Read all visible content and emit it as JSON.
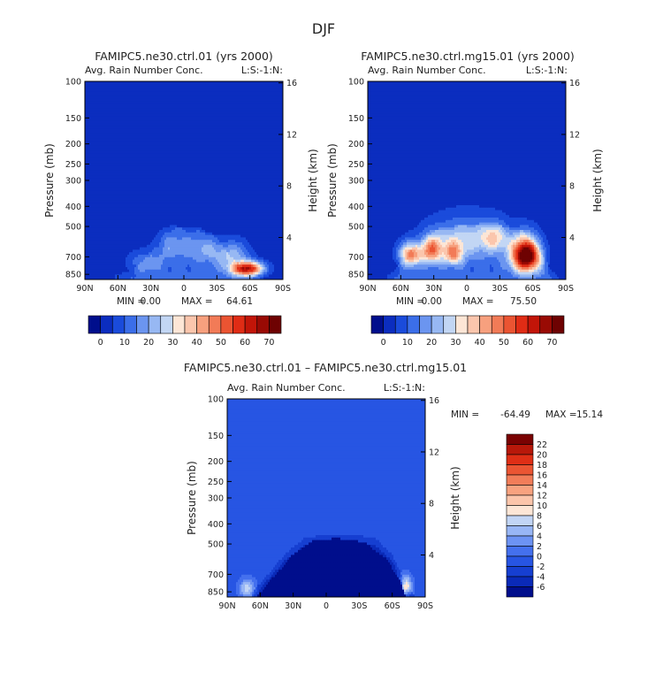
{
  "figure": {
    "title": "DJF"
  },
  "contour_levels": [
    -1000,
    0,
    5,
    10,
    15,
    20,
    25,
    30,
    35,
    40,
    45,
    50,
    55,
    60,
    65,
    70,
    75
  ],
  "palette_abs": [
    "#000e8c",
    "#0b2dbf",
    "#1a4bdb",
    "#3b6ee9",
    "#6b95f0",
    "#97b8f3",
    "#c2d6f4",
    "#fde6d6",
    "#fbc6ad",
    "#f7a07e",
    "#f27b57",
    "#eb5432",
    "#e02c15",
    "#c21508",
    "#990a04",
    "#6e0202"
  ],
  "diff_levels": [
    -1000,
    -6,
    -4,
    -2,
    0,
    2,
    4,
    6,
    8,
    10,
    12,
    14,
    16,
    18,
    20,
    22
  ],
  "palette_diff": [
    "#000e8c",
    "#0a2ab8",
    "#163fd1",
    "#2755e3",
    "#4470ee",
    "#6d93f3",
    "#98b6f5",
    "#c2d5f5",
    "#fde6d6",
    "#fbc5ab",
    "#f8a27f",
    "#f27d59",
    "#eb5533",
    "#df2f16",
    "#b8180a",
    "#7a0202"
  ],
  "chart_data": [
    {
      "type": "heatmap",
      "id": "left",
      "title": "FAMIPC5.ne30.ctrl.01 (yrs 2000)",
      "subtitle_left": "Avg. Rain Number Conc.",
      "subtitle_right": "L:S:-1:N:",
      "xlabel": "",
      "ylabel": "Pressure (mb)",
      "ylabel_right": "Height (km)",
      "x_ticks": [
        "90N",
        "60N",
        "30N",
        "0",
        "30S",
        "60S",
        "90S"
      ],
      "y_ticks": [
        100,
        150,
        200,
        250,
        300,
        400,
        500,
        700,
        850
      ],
      "height_ticks": [
        16,
        12,
        8,
        4
      ],
      "min_label": "MIN = ",
      "min_value": "0.00",
      "max_label": "MAX = ",
      "max_value": "64.61",
      "colorbar_labels": [
        "0",
        "10",
        "20",
        "30",
        "40",
        "50",
        "60",
        "70"
      ],
      "field": {
        "background": 1.5,
        "envelope": [
          [
            -62,
            860
          ],
          [
            -45,
            800
          ],
          [
            -30,
            660
          ],
          [
            -15,
            520
          ],
          [
            0,
            500
          ],
          [
            15,
            510
          ],
          [
            30,
            560
          ],
          [
            45,
            720
          ],
          [
            60,
            840
          ],
          [
            75,
            900
          ]
        ],
        "blobs": [
          {
            "lat": 58,
            "p": 800,
            "sl": 10,
            "sp": 45,
            "amp": 62
          },
          {
            "lat": 45,
            "p": 680,
            "sl": 10,
            "sp": 70,
            "amp": 20
          },
          {
            "lat": -38,
            "p": 740,
            "sl": 10,
            "sp": 60,
            "amp": 12
          },
          {
            "lat": -10,
            "p": 600,
            "sl": 14,
            "sp": 80,
            "amp": 8
          },
          {
            "lat": 20,
            "p": 640,
            "sl": 10,
            "sp": 70,
            "amp": 9
          }
        ]
      }
    },
    {
      "type": "heatmap",
      "id": "right",
      "title": "FAMIPC5.ne30.ctrl.mg15.01 (yrs 2000)",
      "subtitle_left": "Avg. Rain Number Conc.",
      "subtitle_right": "L:S:-1:N:",
      "xlabel": "",
      "ylabel": "Pressure (mb)",
      "ylabel_right": "Height (km)",
      "x_ticks": [
        "90N",
        "60N",
        "30N",
        "0",
        "30S",
        "60S",
        "90S"
      ],
      "y_ticks": [
        100,
        150,
        200,
        250,
        300,
        400,
        500,
        700,
        850
      ],
      "height_ticks": [
        16,
        12,
        8,
        4
      ],
      "min_label": "MIN = ",
      "min_value": "0.00",
      "max_label": "MAX = ",
      "max_value": "75.50",
      "colorbar_labels": [
        "0",
        "10",
        "20",
        "30",
        "40",
        "50",
        "60",
        "70"
      ],
      "field": {
        "background": 1.5,
        "envelope": [
          [
            -72,
            860
          ],
          [
            -62,
            760
          ],
          [
            -45,
            600
          ],
          [
            -25,
            510
          ],
          [
            0,
            490
          ],
          [
            25,
            490
          ],
          [
            50,
            520
          ],
          [
            65,
            640
          ],
          [
            78,
            820
          ],
          [
            85,
            900
          ]
        ],
        "blobs": [
          {
            "lat": 54,
            "p": 690,
            "sl": 9,
            "sp": 90,
            "amp": 72
          },
          {
            "lat": -52,
            "p": 680,
            "sl": 7,
            "sp": 60,
            "amp": 40
          },
          {
            "lat": -32,
            "p": 650,
            "sl": 7,
            "sp": 70,
            "amp": 35
          },
          {
            "lat": -12,
            "p": 680,
            "sl": 6,
            "sp": 60,
            "amp": 30
          },
          {
            "lat": 25,
            "p": 560,
            "sl": 8,
            "sp": 60,
            "amp": 18
          },
          {
            "lat": 0,
            "p": 560,
            "sl": 25,
            "sp": 90,
            "amp": 18
          }
        ]
      }
    },
    {
      "type": "heatmap",
      "id": "diff",
      "title": "FAMIPC5.ne30.ctrl.01 – FAMIPC5.ne30.ctrl.mg15.01",
      "subtitle_left": "Avg. Rain Number Conc.",
      "subtitle_right": "L:S:-1:N:",
      "xlabel": "",
      "ylabel": "Pressure (mb)",
      "ylabel_right": "Height (km)",
      "x_ticks": [
        "90N",
        "60N",
        "30N",
        "0",
        "30S",
        "60S",
        "90S"
      ],
      "y_ticks": [
        100,
        150,
        200,
        250,
        300,
        400,
        500,
        700,
        850
      ],
      "height_ticks": [
        16,
        12,
        8,
        4
      ],
      "min_label": "MIN = ",
      "min_value": "-64.49",
      "max_label": "MAX = ",
      "max_value": "15.14",
      "colorbar_labels": [
        "22",
        "20",
        "18",
        "16",
        "14",
        "12",
        "10",
        "8",
        "6",
        "4",
        "2",
        "0",
        "-2",
        "-4",
        "-6"
      ],
      "field": {
        "background": -1,
        "envelope": [
          [
            -68,
            860
          ],
          [
            -55,
            720
          ],
          [
            -38,
            560
          ],
          [
            -20,
            470
          ],
          [
            0,
            450
          ],
          [
            25,
            450
          ],
          [
            45,
            470
          ],
          [
            60,
            560
          ],
          [
            72,
            760
          ],
          [
            80,
            880
          ]
        ],
        "inner": [
          [
            -62,
            880
          ],
          [
            -48,
            720
          ],
          [
            -30,
            560
          ],
          [
            -12,
            480
          ],
          [
            10,
            470
          ],
          [
            35,
            490
          ],
          [
            55,
            590
          ],
          [
            68,
            760
          ],
          [
            72,
            880
          ]
        ],
        "blobs": [
          {
            "lat": 60,
            "p": 835,
            "sl": 6,
            "sp": 25,
            "amp": 14
          },
          {
            "lat": 72,
            "p": 800,
            "sl": 4,
            "sp": 60,
            "amp": 12
          },
          {
            "lat": -72,
            "p": 820,
            "sl": 5,
            "sp": 60,
            "amp": 8
          }
        ]
      }
    }
  ]
}
